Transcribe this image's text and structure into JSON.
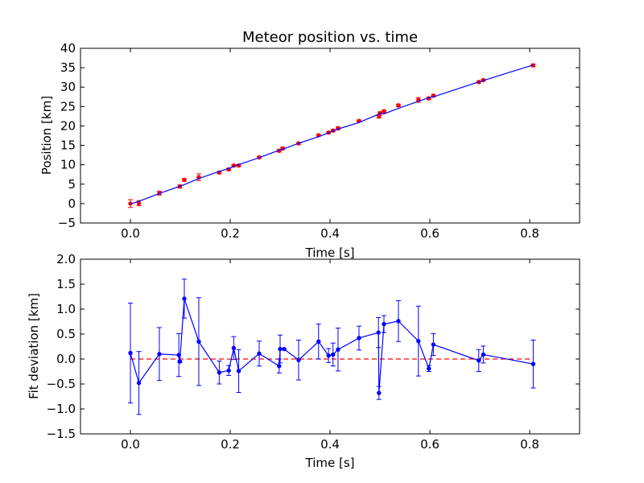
{
  "chart_data": [
    {
      "type": "scatter",
      "title": "Meteor position vs. time",
      "xlabel": "Time [s]",
      "ylabel": "Position [km]",
      "xlim": [
        -0.1,
        0.9
      ],
      "ylim": [
        -5,
        40
      ],
      "xticks": [
        0.0,
        0.2,
        0.4,
        0.6,
        0.8
      ],
      "xtick_labels": [
        "0.0",
        "0.2",
        "0.4",
        "0.6",
        "0.8"
      ],
      "yticks": [
        -5,
        0,
        5,
        10,
        15,
        20,
        25,
        30,
        35,
        40
      ],
      "ytick_labels": [
        "−5",
        "0",
        "5",
        "10",
        "15",
        "20",
        "25",
        "30",
        "35",
        "40"
      ],
      "grid": false,
      "colors": {
        "points": "#ff0000",
        "fit": "#0000ff",
        "errorbar": "#ff0000"
      },
      "series": [
        {
          "kind": "points_with_errorbars",
          "x": [
            0.0,
            0.017,
            0.058,
            0.099,
            0.108,
            0.137,
            0.178,
            0.197,
            0.207,
            0.217,
            0.258,
            0.298,
            0.305,
            0.337,
            0.377,
            0.397,
            0.406,
            0.416,
            0.458,
            0.498,
            0.5,
            0.508,
            0.537,
            0.577,
            0.598,
            0.607,
            0.698,
            0.707,
            0.807
          ],
          "y": [
            0.0,
            0.1,
            2.7,
            4.4,
            6.1,
            6.8,
            8.0,
            8.8,
            9.8,
            9.8,
            11.9,
            13.6,
            14.2,
            15.5,
            17.6,
            18.3,
            18.8,
            19.4,
            21.3,
            22.4,
            23.3,
            23.8,
            25.3,
            26.7,
            27.1,
            27.8,
            31.3,
            31.8,
            35.6
          ],
          "err": [
            1.0,
            0.65,
            0.5,
            0.4,
            0.35,
            0.85,
            0.3,
            0.3,
            0.25,
            0.25,
            0.25,
            0.3,
            0.3,
            0.25,
            0.25,
            0.25,
            0.3,
            0.4,
            0.2,
            0.3,
            0.3,
            0.25,
            0.3,
            0.6,
            0.3,
            0.3,
            0.25,
            0.25,
            0.35
          ]
        },
        {
          "kind": "fit_line",
          "x": [
            0.0,
            0.017,
            0.058,
            0.099,
            0.108,
            0.137,
            0.178,
            0.197,
            0.207,
            0.217,
            0.258,
            0.298,
            0.305,
            0.337,
            0.377,
            0.397,
            0.406,
            0.416,
            0.458,
            0.498,
            0.5,
            0.508,
            0.537,
            0.577,
            0.598,
            0.607,
            0.698,
            0.707,
            0.807
          ],
          "y": [
            -0.12,
            0.58,
            2.62,
            4.48,
            4.88,
            6.45,
            8.28,
            9.03,
            9.55,
            10.06,
            11.81,
            13.75,
            14.0,
            15.53,
            17.23,
            18.24,
            18.73,
            19.21,
            20.88,
            23.06,
            23.31,
            23.1,
            24.54,
            26.35,
            27.3,
            27.5,
            31.35,
            31.7,
            35.7
          ]
        }
      ]
    },
    {
      "type": "line",
      "title": "",
      "xlabel": "Time [s]",
      "ylabel": "Fit deviation [km]",
      "xlim": [
        -0.1,
        0.9
      ],
      "ylim": [
        -1.5,
        2.0
      ],
      "xticks": [
        0.0,
        0.2,
        0.4,
        0.6,
        0.8
      ],
      "xtick_labels": [
        "0.0",
        "0.2",
        "0.4",
        "0.6",
        "0.8"
      ],
      "yticks": [
        -1.5,
        -1.0,
        -0.5,
        0.0,
        0.5,
        1.0,
        1.5,
        2.0
      ],
      "ytick_labels": [
        "−1.5",
        "−1.0",
        "−0.5",
        "0.0",
        "0.5",
        "1.0",
        "1.5",
        "2.0"
      ],
      "grid": false,
      "colors": {
        "line": "#0000ff",
        "zero": "#ff0000"
      },
      "series": [
        {
          "kind": "line_with_errorbars",
          "x": [
            0.0,
            0.017,
            0.058,
            0.097,
            0.099,
            0.108,
            0.137,
            0.178,
            0.197,
            0.207,
            0.217,
            0.258,
            0.298,
            0.3,
            0.308,
            0.337,
            0.377,
            0.397,
            0.406,
            0.416,
            0.458,
            0.497,
            0.498,
            0.508,
            0.537,
            0.577,
            0.598,
            0.607,
            0.698,
            0.707,
            0.807
          ],
          "y": [
            0.12,
            -0.48,
            0.1,
            0.08,
            -0.05,
            1.21,
            0.35,
            -0.27,
            -0.23,
            0.22,
            -0.24,
            0.11,
            -0.14,
            0.2,
            0.2,
            -0.02,
            0.35,
            0.07,
            0.09,
            0.19,
            0.42,
            0.53,
            -0.68,
            0.7,
            0.76,
            0.36,
            -0.19,
            0.29,
            -0.03,
            0.09,
            -0.1
          ],
          "err": [
            1.0,
            0.63,
            0.53,
            0.43,
            0.02,
            0.39,
            0.88,
            0.23,
            0.1,
            0.23,
            0.43,
            0.25,
            0.14,
            0.28,
            0.0,
            0.4,
            0.35,
            0.14,
            0.23,
            0.43,
            0.24,
            0.3,
            0.13,
            0.17,
            0.41,
            0.7,
            0.06,
            0.22,
            0.22,
            0.17,
            0.48
          ]
        },
        {
          "kind": "zero_line",
          "x": [
            0.0,
            0.807
          ],
          "y": [
            0.0,
            0.0
          ]
        }
      ]
    }
  ]
}
